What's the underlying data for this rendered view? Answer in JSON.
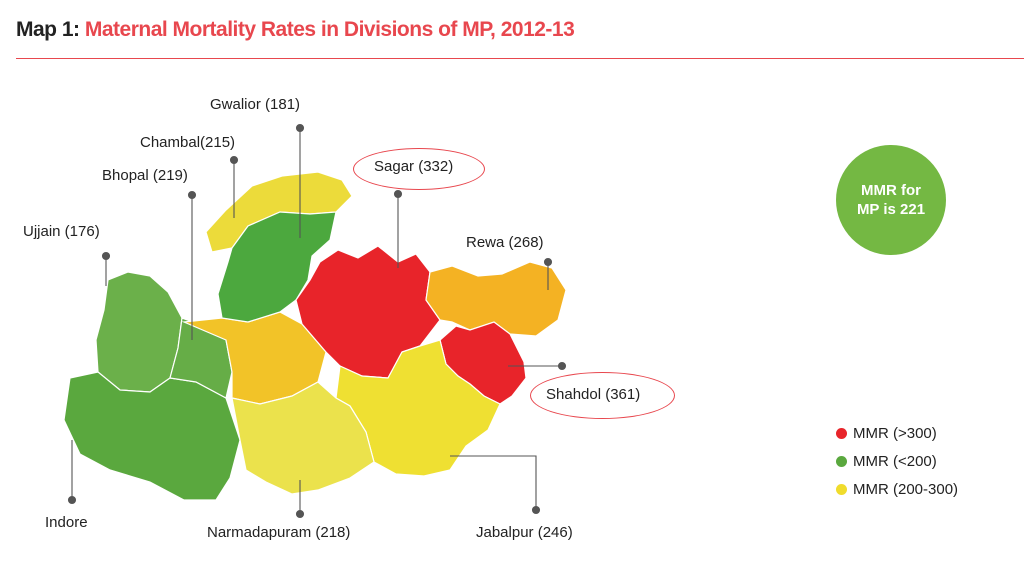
{
  "header": {
    "map_label": "Map 1: ",
    "title": "Maternal Mortality Rates in Divisions of MP, 2012-13"
  },
  "state_mmr": {
    "line1": "MMR for",
    "line2": "MP is 221"
  },
  "colors": {
    "red": "#e8242a",
    "green": "#5aa83e",
    "yellow": "#f0dc2c",
    "orange": "#f4b223",
    "title": "#e8474e"
  },
  "divisions": [
    {
      "key": "gwalior",
      "label": "Gwalior (181)",
      "category": "green"
    },
    {
      "key": "chambal",
      "label": "Chambal(215)",
      "category": "yellow"
    },
    {
      "key": "bhopal",
      "label": "Bhopal (219)",
      "category": "yellow"
    },
    {
      "key": "ujjain",
      "label": "Ujjain (176)",
      "category": "green"
    },
    {
      "key": "sagar",
      "label": "Sagar (332)",
      "category": "red",
      "highlight": true
    },
    {
      "key": "rewa",
      "label": "Rewa (268)",
      "category": "yellow"
    },
    {
      "key": "shahdol",
      "label": "Shahdol (361)",
      "category": "red",
      "highlight": true
    },
    {
      "key": "indore",
      "label": "Indore",
      "category": "green"
    },
    {
      "key": "narmadapuram",
      "label": "Narmadapuram (218)",
      "category": "yellow"
    },
    {
      "key": "jabalpur",
      "label": "Jabalpur (246)",
      "category": "yellow"
    }
  ],
  "legend": [
    {
      "label": "MMR (>300)",
      "color": "#e8242a"
    },
    {
      "label": "MMR (<200)",
      "color": "#5aa83e"
    },
    {
      "label": "MMR (200-300)",
      "color": "#f0dc2c"
    }
  ]
}
